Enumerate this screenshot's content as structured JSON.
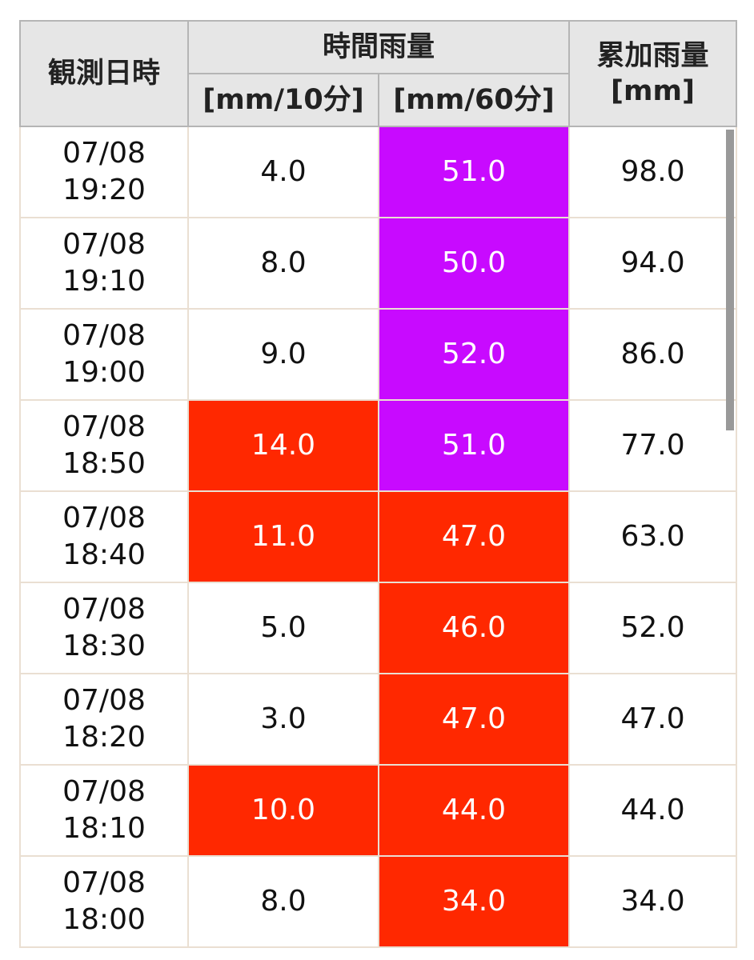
{
  "header": {
    "datetime": "観測日時",
    "hourly": "時間雨量",
    "per10": "[mm/10分]",
    "per60": "[mm/60分]",
    "cumulative": "累加雨量",
    "cumulative_unit": "[mm]"
  },
  "rows": [
    {
      "date": "07/08",
      "time": "19:20",
      "r10": "4.0",
      "r10_color": "#ffffff",
      "r60": "51.0",
      "r60_color": "#c80aff",
      "total": "98.0"
    },
    {
      "date": "07/08",
      "time": "19:10",
      "r10": "8.0",
      "r10_color": "#ffffff",
      "r60": "50.0",
      "r60_color": "#c80aff",
      "total": "94.0"
    },
    {
      "date": "07/08",
      "time": "19:00",
      "r10": "9.0",
      "r10_color": "#ffffff",
      "r60": "52.0",
      "r60_color": "#c80aff",
      "total": "86.0"
    },
    {
      "date": "07/08",
      "time": "18:50",
      "r10": "14.0",
      "r10_color": "#ff2800",
      "r60": "51.0",
      "r60_color": "#c80aff",
      "total": "77.0"
    },
    {
      "date": "07/08",
      "time": "18:40",
      "r10": "11.0",
      "r10_color": "#ff2800",
      "r60": "47.0",
      "r60_color": "#ff2800",
      "total": "63.0"
    },
    {
      "date": "07/08",
      "time": "18:30",
      "r10": "5.0",
      "r10_color": "#ffffff",
      "r60": "46.0",
      "r60_color": "#ff2800",
      "total": "52.0"
    },
    {
      "date": "07/08",
      "time": "18:20",
      "r10": "3.0",
      "r10_color": "#ffffff",
      "r60": "47.0",
      "r60_color": "#ff2800",
      "total": "47.0"
    },
    {
      "date": "07/08",
      "time": "18:10",
      "r10": "10.0",
      "r10_color": "#ff2800",
      "r60": "44.0",
      "r60_color": "#ff2800",
      "total": "44.0"
    },
    {
      "date": "07/08",
      "time": "18:00",
      "r10": "8.0",
      "r10_color": "#ffffff",
      "r60": "34.0",
      "r60_color": "#ff2800",
      "total": "34.0"
    }
  ]
}
